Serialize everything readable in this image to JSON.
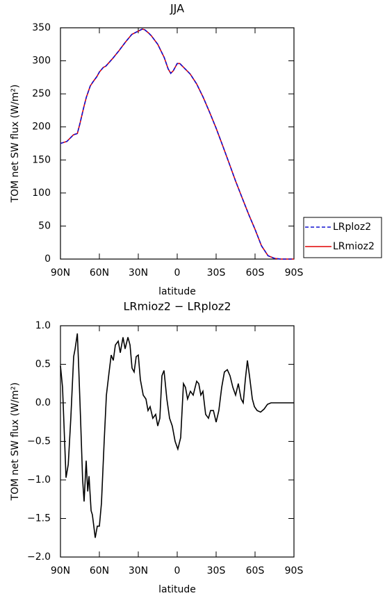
{
  "chart_data": [
    {
      "type": "line",
      "title": "JJA",
      "x_label": "latitude",
      "y_label": "TOM net SW flux (W/m²)",
      "xlim": [
        90,
        -90
      ],
      "ylim": [
        0,
        350
      ],
      "xticks": [
        {
          "value": 90,
          "label": "90N"
        },
        {
          "value": 60,
          "label": "60N"
        },
        {
          "value": 30,
          "label": "30N"
        },
        0,
        {
          "value": -30,
          "label": "30S"
        },
        {
          "value": -60,
          "label": "60S"
        },
        {
          "value": -90,
          "label": "90S"
        }
      ],
      "yticks": [
        0,
        50,
        100,
        150,
        200,
        250,
        300,
        350
      ],
      "legend": "right",
      "x": [
        90,
        85,
        80,
        77,
        75,
        72,
        70,
        67,
        65,
        62,
        60,
        57,
        55,
        50,
        45,
        40,
        35,
        30,
        27,
        25,
        22,
        20,
        15,
        10,
        7,
        5,
        3,
        0,
        -2,
        -5,
        -10,
        -15,
        -20,
        -25,
        -30,
        -35,
        -40,
        -45,
        -50,
        -55,
        -60,
        -65,
        -70,
        -75,
        -80,
        -90
      ],
      "series": [
        {
          "name": "LRmioz2",
          "color": "#e00000",
          "line_style": "solid",
          "values": [
            175,
            178,
            188,
            190,
            205,
            230,
            245,
            262,
            268,
            276,
            283,
            290,
            292,
            303,
            315,
            328,
            340,
            345,
            348,
            347,
            342,
            338,
            325,
            305,
            288,
            281,
            285,
            296,
            296,
            290,
            280,
            265,
            245,
            222,
            198,
            172,
            145,
            118,
            93,
            68,
            45,
            20,
            5,
            1,
            0,
            0
          ]
        },
        {
          "name": "LRploz2",
          "color": "#1010d0",
          "line_style": "dashed",
          "values": [
            175,
            178,
            188,
            190,
            205,
            230,
            245,
            262,
            268,
            276,
            283,
            290,
            292,
            303,
            315,
            328,
            340,
            345,
            348,
            347,
            342,
            338,
            325,
            305,
            288,
            281,
            285,
            296,
            296,
            290,
            280,
            265,
            245,
            222,
            198,
            172,
            145,
            118,
            93,
            68,
            45,
            20,
            5,
            1,
            0,
            0
          ]
        }
      ]
    },
    {
      "type": "line",
      "title": "LRmioz2 − LRploz2",
      "x_label": "latitude",
      "y_label": "TOM net SW flux (W/m²)",
      "xlim": [
        90,
        -90
      ],
      "ylim": [
        -2,
        1
      ],
      "xticks": [
        {
          "value": 90,
          "label": "90N"
        },
        {
          "value": 60,
          "label": "60N"
        },
        {
          "value": 30,
          "label": "30N"
        },
        0,
        {
          "value": -30,
          "label": "30S"
        },
        {
          "value": -60,
          "label": "60S"
        },
        {
          "value": -90,
          "label": "90S"
        }
      ],
      "yticks": [
        {
          "value": -2,
          "label": "−2.0"
        },
        {
          "value": -1.5,
          "label": "−1.5"
        },
        {
          "value": -1,
          "label": "−1.0"
        },
        {
          "value": -0.5,
          "label": "−0.5"
        },
        {
          "value": 0,
          "label": "0.0"
        },
        0.5,
        {
          "value": 1,
          "label": "1.0"
        }
      ],
      "x": [
        90,
        88.4,
        85.7,
        84,
        82,
        79.8,
        78.7,
        77,
        76,
        74.5,
        72.9,
        71.8,
        70.2,
        69,
        68,
        66.4,
        65.4,
        64.3,
        63.2,
        61.6,
        60,
        58.4,
        56.3,
        54.6,
        52.5,
        50.9,
        49.3,
        47.7,
        45.5,
        43.9,
        41.8,
        40.2,
        38,
        36.4,
        34.8,
        33.2,
        31.6,
        30,
        28.4,
        26.2,
        24.1,
        22.5,
        20.9,
        18.8,
        16.6,
        15,
        13.4,
        11.8,
        10.2,
        8,
        5.9,
        3.8,
        1.6,
        -0.5,
        -2.7,
        -4.8,
        -6.4,
        -8,
        -10.2,
        -12.3,
        -15,
        -16.6,
        -18.2,
        -19.8,
        -21.9,
        -24.1,
        -25.7,
        -27.9,
        -30,
        -32.1,
        -34.3,
        -36.4,
        -38.6,
        -40.7,
        -42.9,
        -45,
        -47.1,
        -49.3,
        -50.9,
        -52.5,
        -54.1,
        -55.7,
        -57.9,
        -59.5,
        -61.6,
        -64.3,
        -67,
        -69.6,
        -72.3,
        -90
      ],
      "series": [
        {
          "color": "#000000",
          "line_style": "solid",
          "values": [
            0.48,
            0.2,
            -0.97,
            -0.8,
            -0.2,
            0.6,
            0.7,
            0.9,
            0.5,
            -0.2,
            -1,
            -1.28,
            -0.75,
            -1.15,
            -0.95,
            -1.4,
            -1.45,
            -1.6,
            -1.75,
            -1.6,
            -1.6,
            -1.3,
            -0.5,
            0.1,
            0.4,
            0.62,
            0.55,
            0.75,
            0.8,
            0.65,
            0.85,
            0.7,
            0.85,
            0.75,
            0.45,
            0.4,
            0.6,
            0.62,
            0.3,
            0.1,
            0.05,
            -0.1,
            -0.05,
            -0.2,
            -0.15,
            -0.3,
            -0.2,
            0.35,
            0.42,
            0.05,
            -0.2,
            -0.3,
            -0.5,
            -0.6,
            -0.45,
            0.25,
            0.2,
            0.05,
            0.15,
            0.1,
            0.28,
            0.25,
            0.1,
            0.15,
            -0.15,
            -0.2,
            -0.1,
            -0.1,
            -0.25,
            -0.1,
            0.2,
            0.4,
            0.43,
            0.35,
            0.2,
            0.1,
            0.25,
            0.05,
            0,
            0.3,
            0.55,
            0.35,
            0.05,
            -0.05,
            -0.1,
            -0.12,
            -0.08,
            -0.02,
            0,
            0
          ]
        }
      ]
    }
  ]
}
